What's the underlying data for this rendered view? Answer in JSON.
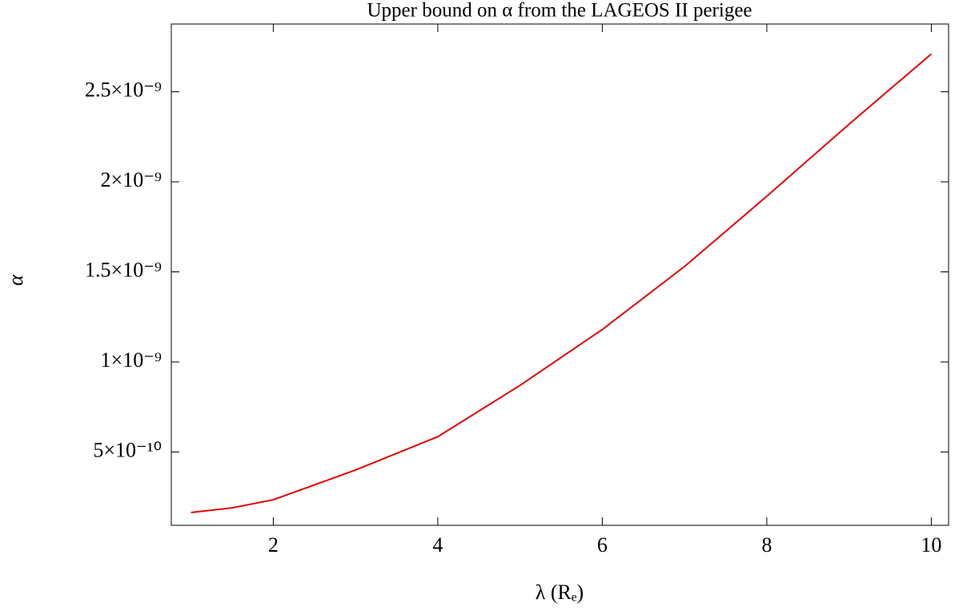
{
  "chart_data": {
    "type": "line",
    "title": "Upper bound on α from the LAGEOS II perigee",
    "x_label": "λ (Rₑ)",
    "y_label": "α",
    "x": [
      1,
      1.5,
      2,
      3,
      4,
      5,
      6,
      7,
      8,
      9,
      10
    ],
    "series": [
      {
        "color": "#e00000",
        "values": [
          1.64e-10,
          1.9e-10,
          2.35e-10,
          4e-10,
          5.85e-10,
          8.7e-10,
          1.18e-09,
          1.53e-09,
          1.92e-09,
          2.32e-09,
          2.71e-09
        ]
      }
    ],
    "xlim": [
      0.76,
      10.21
    ],
    "ylim": [
      9.3e-11,
      2.876e-09
    ],
    "xticks": [
      2,
      4,
      6,
      8,
      10
    ],
    "yticks": [
      {
        "value": 5e-10,
        "label": "5×10⁻¹⁰"
      },
      {
        "value": 1e-09,
        "label": "1×10⁻⁹"
      },
      {
        "value": 1.5e-09,
        "label": "1.5×10⁻⁹"
      },
      {
        "value": 2e-09,
        "label": "2×10⁻⁹"
      },
      {
        "value": 2.5e-09,
        "label": "2.5×10⁻⁹"
      }
    ]
  }
}
